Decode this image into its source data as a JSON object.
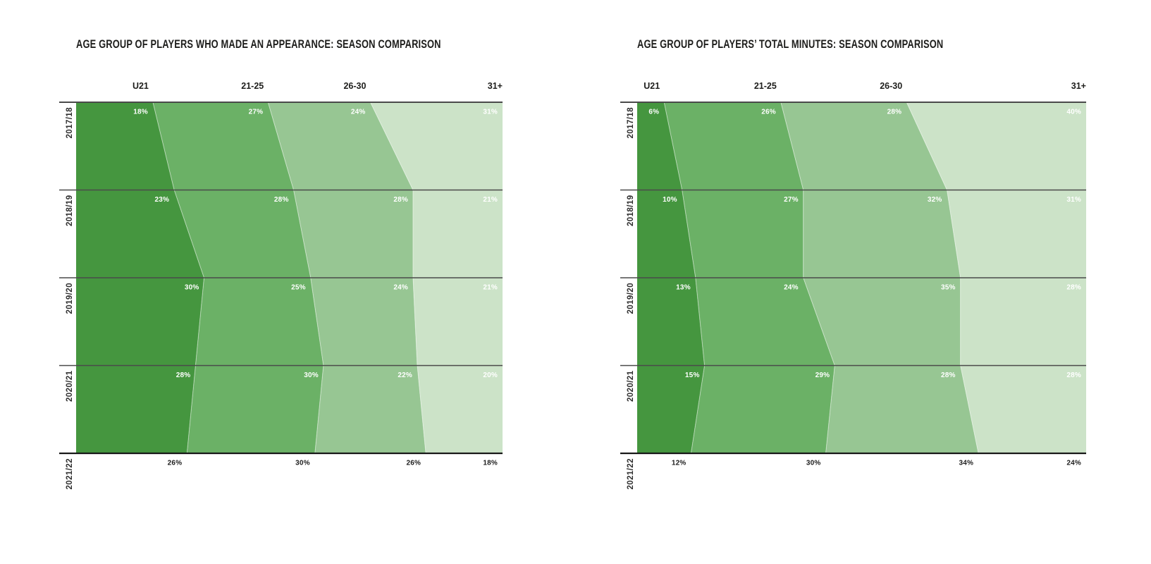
{
  "page": {
    "background": "#ffffff"
  },
  "chart_data": [
    {
      "id": "appearance",
      "type": "area",
      "title": "AGE GROUP OF PLAYERS WHO MADE AN APPEARANCE: SEASON COMPARISON",
      "orientation": "seasons-top-to-bottom, share-of-100%-left-to-right",
      "categories": [
        "2017/18",
        "2018/19",
        "2019/20",
        "2020/21",
        "2021/22"
      ],
      "groups": [
        "U21",
        "21-25",
        "26-30",
        "31+"
      ],
      "unit": "%",
      "xlim": [
        0,
        100
      ],
      "series": [
        {
          "name": "U21",
          "values": [
            18,
            23,
            30,
            28,
            26
          ]
        },
        {
          "name": "21-25",
          "values": [
            27,
            28,
            25,
            30,
            30
          ]
        },
        {
          "name": "26-30",
          "values": [
            24,
            28,
            24,
            22,
            26
          ]
        },
        {
          "name": "31+",
          "values": [
            31,
            21,
            21,
            20,
            18
          ]
        }
      ],
      "colors": [
        "#45963F",
        "#6BB166",
        "#97C693",
        "#CCE3C8"
      ],
      "grid_line_color": "#4a4a4a",
      "axis_line_color": "#191919",
      "value_label_color_inside": "#ffffff",
      "value_label_color_below_axis": "#1c1c1c"
    },
    {
      "id": "minutes",
      "type": "area",
      "title": "AGE GROUP OF PLAYERS’ TOTAL MINUTES: SEASON COMPARISON",
      "orientation": "seasons-top-to-bottom, share-of-100%-left-to-right",
      "categories": [
        "2017/18",
        "2018/19",
        "2019/20",
        "2020/21",
        "2021/22"
      ],
      "groups": [
        "U21",
        "21-25",
        "26-30",
        "31+"
      ],
      "unit": "%",
      "xlim": [
        0,
        100
      ],
      "series": [
        {
          "name": "U21",
          "values": [
            6,
            10,
            13,
            15,
            12
          ]
        },
        {
          "name": "21-25",
          "values": [
            26,
            27,
            24,
            29,
            30
          ]
        },
        {
          "name": "26-30",
          "values": [
            28,
            32,
            35,
            28,
            34
          ]
        },
        {
          "name": "31+",
          "values": [
            40,
            31,
            28,
            28,
            24
          ]
        }
      ],
      "colors": [
        "#45963F",
        "#6BB166",
        "#97C693",
        "#CCE3C8"
      ],
      "grid_line_color": "#4a4a4a",
      "axis_line_color": "#191919",
      "value_label_color_inside": "#ffffff",
      "value_label_color_below_axis": "#1c1c1c"
    }
  ]
}
